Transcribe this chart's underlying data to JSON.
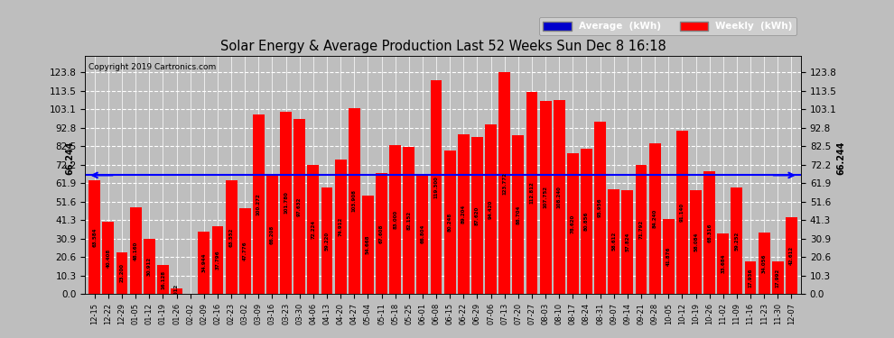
{
  "title": "Solar Energy & Average Production Last 52 Weeks Sun Dec 8 16:18",
  "copyright": "Copyright 2019 Cartronics.com",
  "average_value": 66.244,
  "bar_color": "#FF0000",
  "avg_line_color": "#0000FF",
  "fig_bg": "#BEBEBE",
  "plot_bg": "#BEBEBE",
  "grid_color": "#FFFFFF",
  "ylim_max": 133.0,
  "yticks": [
    0.0,
    10.3,
    20.6,
    30.9,
    41.3,
    51.6,
    61.9,
    72.2,
    82.5,
    92.8,
    103.1,
    113.5,
    123.8
  ],
  "categories": [
    "12-15",
    "12-22",
    "12-29",
    "01-05",
    "01-12",
    "01-19",
    "01-26",
    "02-02",
    "02-09",
    "02-16",
    "02-23",
    "03-02",
    "03-09",
    "03-16",
    "03-23",
    "03-30",
    "04-06",
    "04-13",
    "04-20",
    "04-27",
    "05-04",
    "05-11",
    "05-18",
    "05-25",
    "06-01",
    "06-08",
    "06-15",
    "06-22",
    "06-29",
    "07-06",
    "07-13",
    "07-20",
    "07-27",
    "08-03",
    "08-10",
    "08-17",
    "08-24",
    "08-31",
    "09-07",
    "09-14",
    "09-21",
    "09-28",
    "10-05",
    "10-12",
    "10-19",
    "10-26",
    "11-02",
    "11-09",
    "11-16",
    "11-23",
    "11-30",
    "12-07"
  ],
  "values": [
    63.584,
    40.408,
    23.2,
    48.16,
    30.912,
    16.128,
    3.012,
    0.0,
    34.944,
    37.796,
    63.552,
    47.776,
    100.272,
    66.208,
    101.78,
    97.632,
    72.224,
    59.22,
    74.912,
    103.908,
    54.668,
    67.608,
    83.0,
    82.152,
    66.804,
    119.3,
    80.248,
    89.204,
    87.62,
    94.42,
    123.772,
    88.704,
    112.812,
    107.752,
    108.24,
    78.62,
    80.856,
    95.956,
    58.612,
    57.824,
    71.792,
    84.24,
    41.876,
    91.14,
    58.084,
    68.316,
    33.684,
    59.252,
    17.936,
    34.056,
    17.992,
    42.612
  ],
  "legend_avg_bg": "#0000CC",
  "legend_weekly_bg": "#FF0000",
  "legend_text_color": "#FFFFFF"
}
